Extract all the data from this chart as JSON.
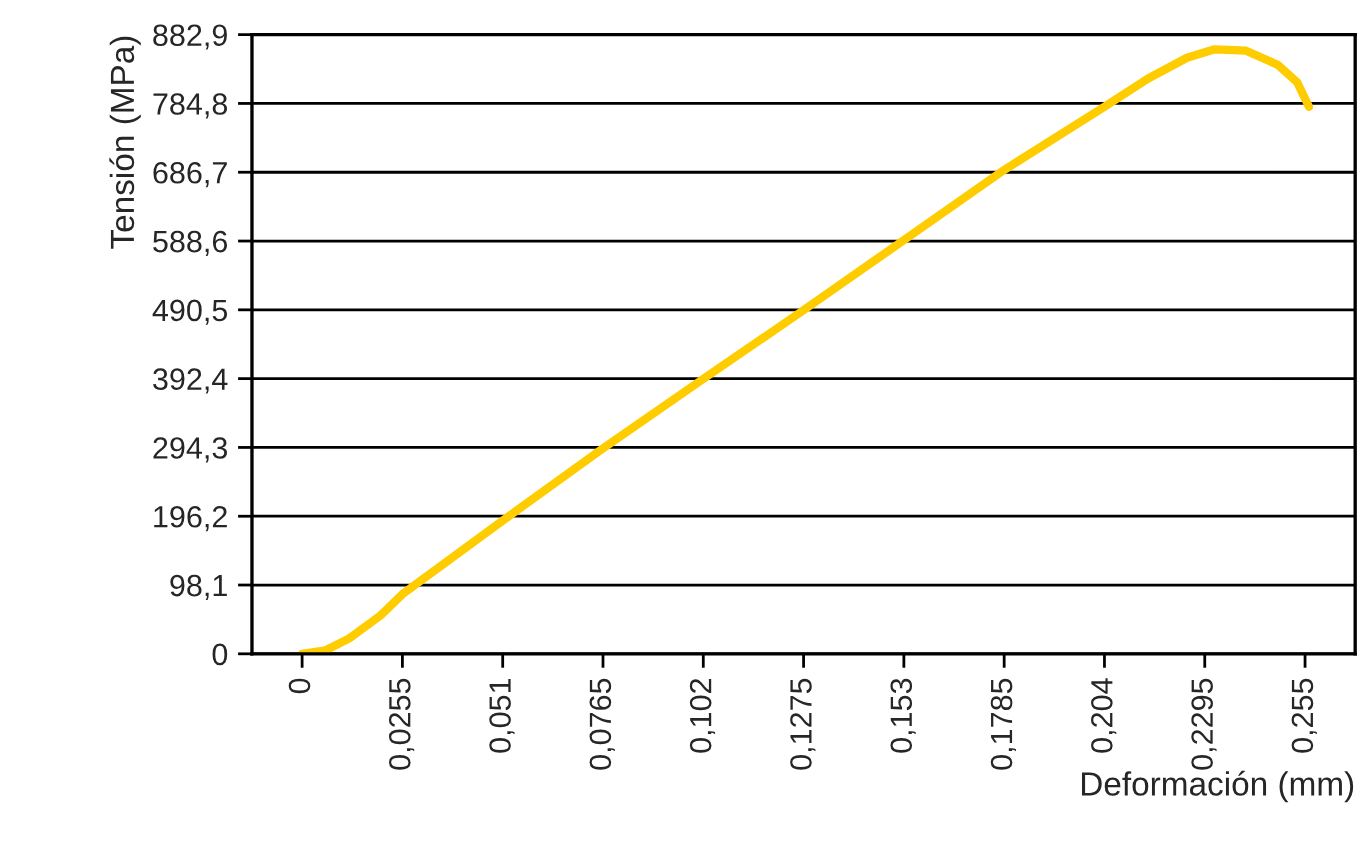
{
  "chart_data": {
    "type": "line",
    "xlabel": "Deformación (mm)",
    "ylabel": "Tensión (MPa)",
    "x": [
      0,
      0.006,
      0.012,
      0.02,
      0.0255,
      0.051,
      0.0765,
      0.102,
      0.1275,
      0.153,
      0.1785,
      0.204,
      0.215,
      0.225,
      0.232,
      0.24,
      0.248,
      0.253,
      0.256
    ],
    "series": [
      {
        "color": "#ffcc00",
        "values": [
          0,
          5,
          22,
          55,
          85,
          190,
          293,
          392,
          490,
          590,
          690,
          780,
          820,
          850,
          862,
          860,
          840,
          815,
          780
        ]
      }
    ],
    "xlim": [
      -0.01275,
      0.26775
    ],
    "xticks": [
      0,
      {
        "value": 0.0255,
        "label": "0,0255"
      },
      {
        "value": 0.051,
        "label": "0,051"
      },
      {
        "value": 0.0765,
        "label": "0,0765"
      },
      {
        "value": 0.102,
        "label": "0,102"
      },
      {
        "value": 0.1275,
        "label": "0,1275"
      },
      {
        "value": 0.153,
        "label": "0,153"
      },
      {
        "value": 0.1785,
        "label": "0,1785"
      },
      {
        "value": 0.204,
        "label": "0,204"
      },
      {
        "value": 0.2295,
        "label": "0,2295"
      },
      {
        "value": 0.255,
        "label": "0,255"
      }
    ],
    "ylim": [
      0,
      882.9
    ],
    "yticks": [
      0,
      {
        "value": 98.1,
        "label": "98,1"
      },
      {
        "value": 196.2,
        "label": "196,2"
      },
      {
        "value": 294.3,
        "label": "294,3"
      },
      {
        "value": 392.4,
        "label": "392,4"
      },
      {
        "value": 490.5,
        "label": "490,5"
      },
      {
        "value": 588.6,
        "label": "588,6"
      },
      {
        "value": 686.7,
        "label": "686,7"
      },
      {
        "value": 784.8,
        "label": "784,8"
      },
      {
        "value": 882.9,
        "label": "882,9"
      }
    ],
    "grid": "y",
    "marker": "none",
    "line_style": "solid"
  }
}
